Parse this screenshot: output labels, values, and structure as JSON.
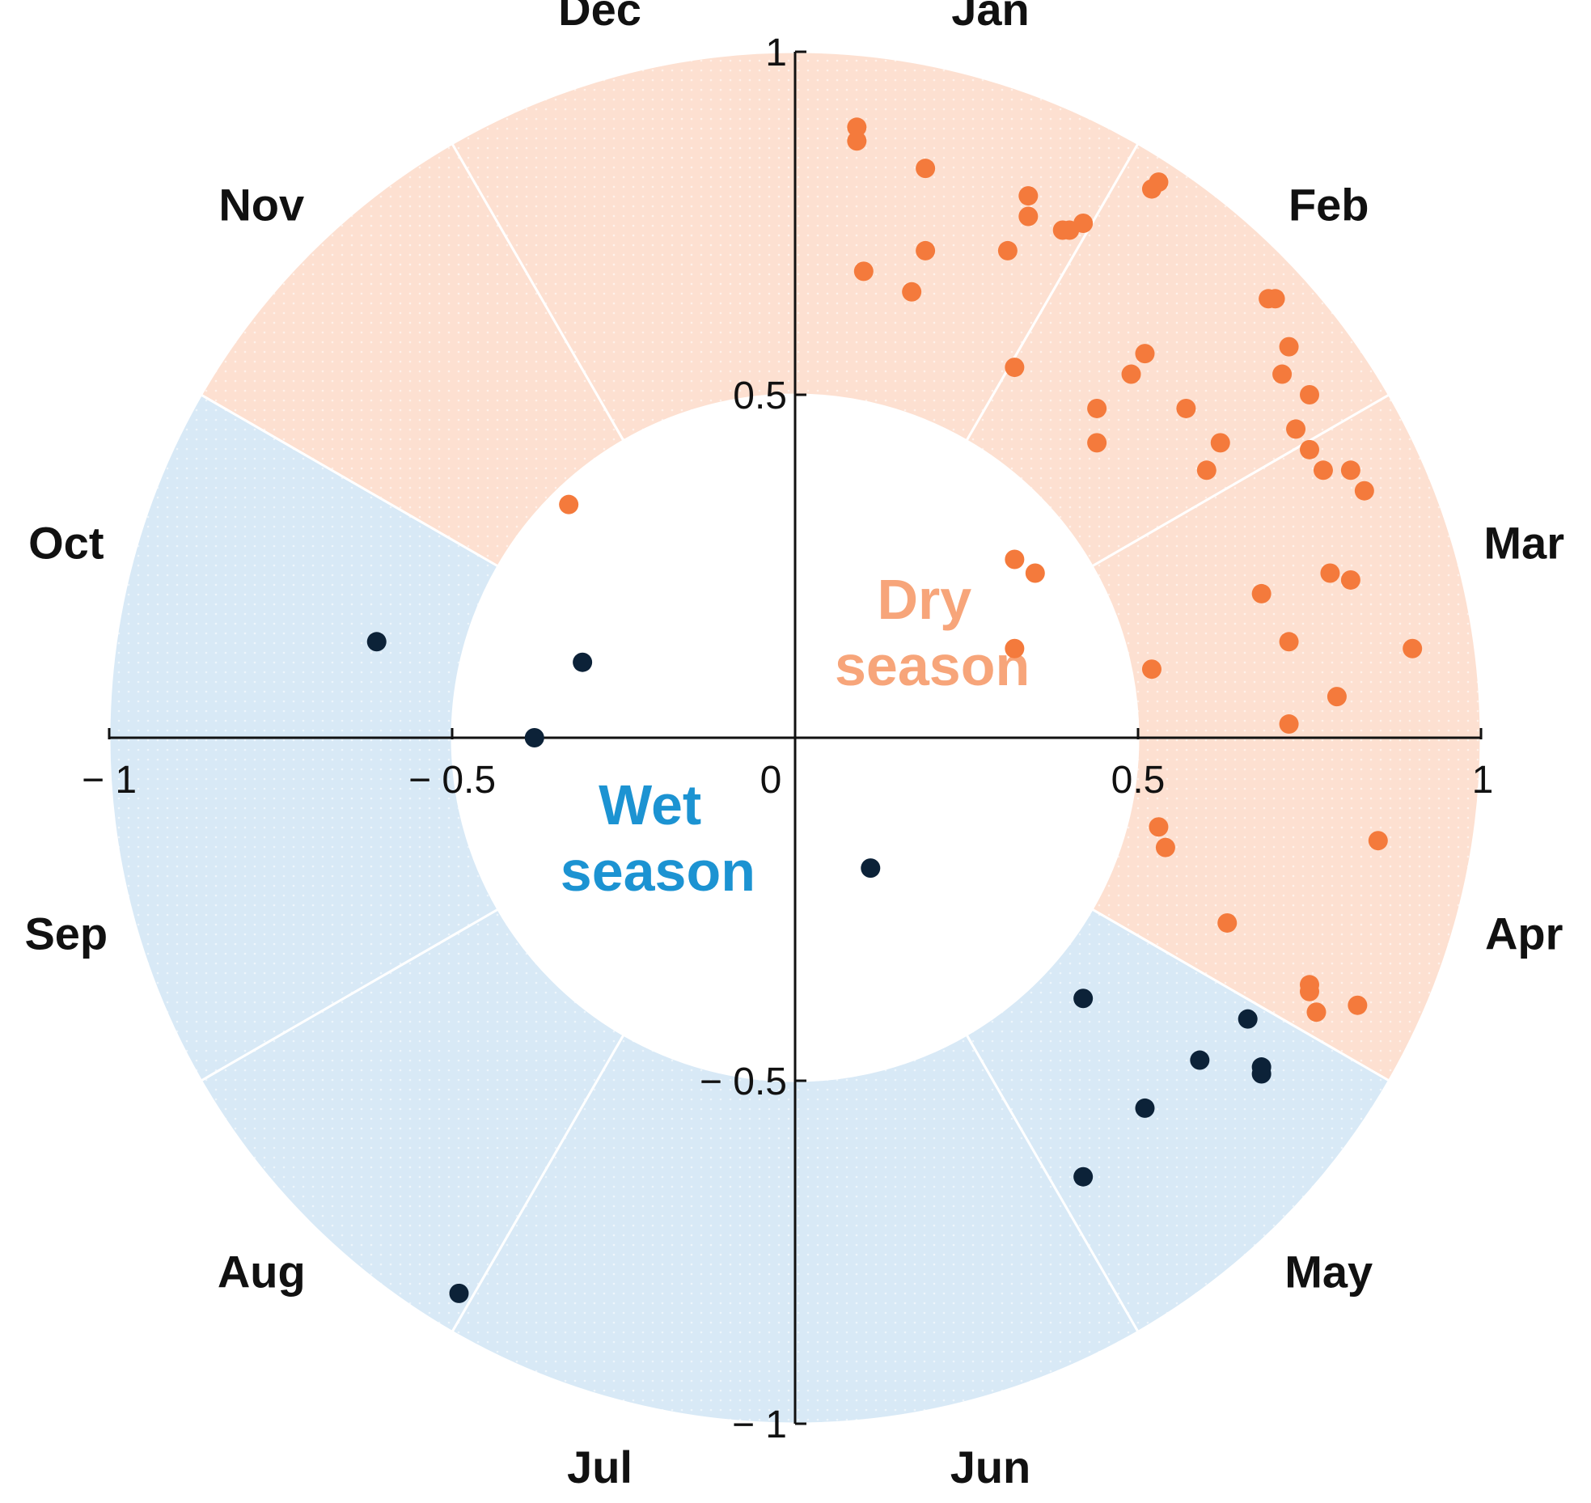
{
  "chart_data": {
    "type": "scatter",
    "coordinate_system": "unit-circle seasonal plot",
    "xlim": [
      -1,
      1
    ],
    "ylim": [
      -1,
      1
    ],
    "inner_radius": 0.5,
    "x_ticks": [
      {
        "value": -1,
        "label": "− 1"
      },
      {
        "value": -0.5,
        "label": "− 0.5"
      },
      {
        "value": 0,
        "label": "0"
      },
      {
        "value": 0.5,
        "label": "0.5"
      },
      {
        "value": 1,
        "label": "1"
      }
    ],
    "y_ticks": [
      {
        "value": 1,
        "label": "1"
      },
      {
        "value": 0.5,
        "label": "0.5"
      },
      {
        "value": -0.5,
        "label": "− 0.5"
      },
      {
        "value": -1,
        "label": "− 1"
      }
    ],
    "months": [
      "Jan",
      "Feb",
      "Mar",
      "Apr",
      "May",
      "Jun",
      "Jul",
      "Aug",
      "Sep",
      "Oct",
      "Nov",
      "Dec"
    ],
    "month_sector_season": [
      "dry",
      "dry",
      "dry",
      "dry",
      "wet",
      "wet",
      "wet",
      "wet",
      "wet",
      "wet",
      "dry",
      "dry"
    ],
    "seasons": {
      "dry": {
        "label_line1": "Dry",
        "label_line2": "season",
        "fill_color": "#fde0d1",
        "text_color": "#f7a57a",
        "label_anchor": [
          0.2,
          0.15
        ]
      },
      "wet": {
        "label_line1": "Wet",
        "label_line2": "season",
        "fill_color": "#d8e9f6",
        "text_color": "#1c93d2",
        "label_anchor": [
          -0.2,
          -0.15
        ]
      }
    },
    "series": [
      {
        "name": "Dry season",
        "color": "#f47a3c",
        "points": [
          [
            0.09,
            0.89
          ],
          [
            0.09,
            0.87
          ],
          [
            0.19,
            0.83
          ],
          [
            0.34,
            0.79
          ],
          [
            0.34,
            0.76
          ],
          [
            0.52,
            0.8
          ],
          [
            0.53,
            0.81
          ],
          [
            0.39,
            0.74
          ],
          [
            0.4,
            0.74
          ],
          [
            0.42,
            0.75
          ],
          [
            0.1,
            0.68
          ],
          [
            0.19,
            0.71
          ],
          [
            0.31,
            0.71
          ],
          [
            0.17,
            0.65
          ],
          [
            0.69,
            0.64
          ],
          [
            0.7,
            0.64
          ],
          [
            0.72,
            0.57
          ],
          [
            0.51,
            0.56
          ],
          [
            0.71,
            0.53
          ],
          [
            0.49,
            0.53
          ],
          [
            0.75,
            0.5
          ],
          [
            0.32,
            0.54
          ],
          [
            0.44,
            0.48
          ],
          [
            0.57,
            0.48
          ],
          [
            0.73,
            0.45
          ],
          [
            0.44,
            0.43
          ],
          [
            0.62,
            0.43
          ],
          [
            0.75,
            0.42
          ],
          [
            0.6,
            0.39
          ],
          [
            0.77,
            0.39
          ],
          [
            0.81,
            0.39
          ],
          [
            0.83,
            0.36
          ],
          [
            -0.33,
            0.34
          ],
          [
            0.32,
            0.26
          ],
          [
            0.35,
            0.24
          ],
          [
            0.78,
            0.24
          ],
          [
            0.81,
            0.23
          ],
          [
            0.68,
            0.21
          ],
          [
            0.72,
            0.14
          ],
          [
            0.9,
            0.13
          ],
          [
            0.32,
            0.13
          ],
          [
            0.52,
            0.1
          ],
          [
            0.79,
            0.06
          ],
          [
            0.72,
            0.02
          ],
          [
            0.53,
            -0.13
          ],
          [
            0.54,
            -0.16
          ],
          [
            0.85,
            -0.15
          ],
          [
            0.63,
            -0.27
          ],
          [
            0.75,
            -0.36
          ],
          [
            0.75,
            -0.37
          ],
          [
            0.76,
            -0.4
          ],
          [
            0.82,
            -0.39
          ]
        ]
      },
      {
        "name": "Wet season",
        "color": "#0c2238",
        "points": [
          [
            -0.61,
            0.14
          ],
          [
            -0.31,
            0.11
          ],
          [
            -0.38,
            0.0
          ],
          [
            0.11,
            -0.19
          ],
          [
            0.42,
            -0.38
          ],
          [
            0.66,
            -0.41
          ],
          [
            0.59,
            -0.47
          ],
          [
            0.68,
            -0.48
          ],
          [
            0.68,
            -0.49
          ],
          [
            0.51,
            -0.54
          ],
          [
            0.42,
            -0.64
          ],
          [
            -0.49,
            -0.81
          ]
        ]
      }
    ]
  }
}
